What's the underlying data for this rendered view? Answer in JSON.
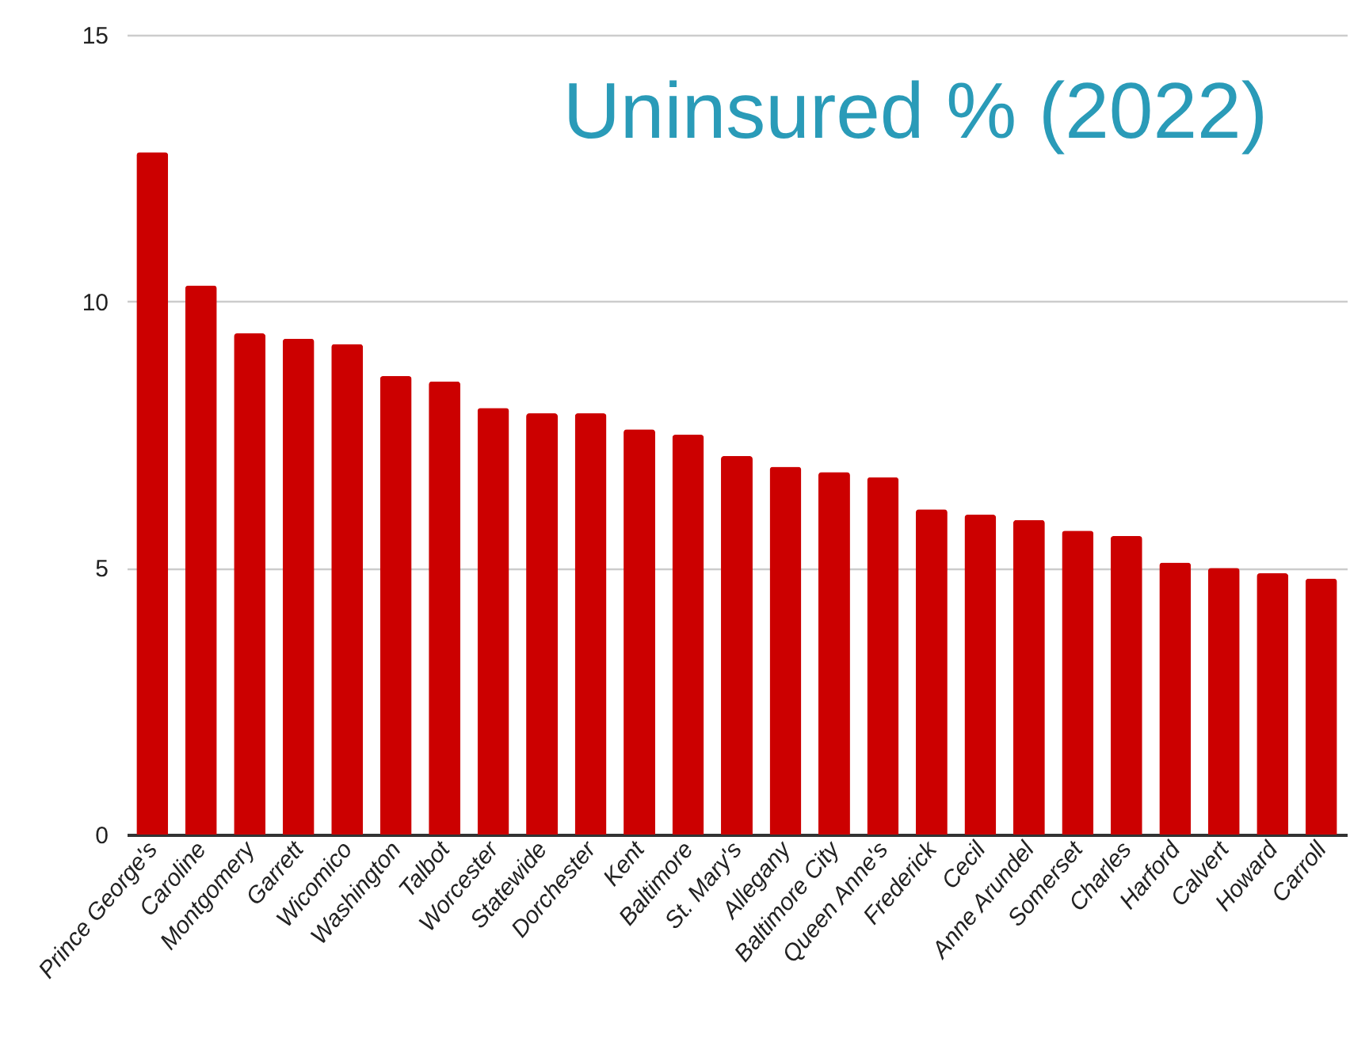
{
  "chart_data": {
    "type": "bar",
    "title": "Uninsured % (2022)",
    "categories": [
      "Prince George's",
      "Caroline",
      "Montgomery",
      "Garrett",
      "Wicomico",
      "Washington",
      "Talbot",
      "Worcester",
      "Statewide",
      "Dorchester",
      "Kent",
      "Baltimore",
      "St. Mary's",
      "Allegany",
      "Baltimore City",
      "Queen Anne's",
      "Frederick",
      "Cecil",
      "Anne Arundel",
      "Somerset",
      "Charles",
      "Harford",
      "Calvert",
      "Howard",
      "Carroll"
    ],
    "values": [
      12.8,
      10.3,
      9.4,
      9.3,
      9.2,
      8.6,
      8.5,
      8.0,
      7.9,
      7.9,
      7.6,
      7.5,
      7.1,
      6.9,
      6.8,
      6.7,
      6.1,
      6.0,
      5.9,
      5.7,
      5.6,
      5.1,
      5.0,
      4.9,
      4.8
    ],
    "color": "#cc0000",
    "ylim": [
      0,
      15
    ],
    "yticks": [
      0,
      5,
      10,
      15
    ],
    "grid": "y"
  }
}
